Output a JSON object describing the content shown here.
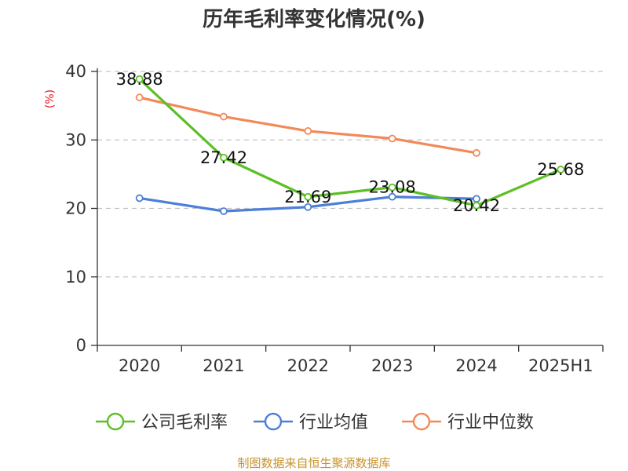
{
  "chart_data": {
    "type": "line",
    "title": "历年毛利率变化情况(%)",
    "ylabel": "(%)",
    "xlabel": "",
    "categories": [
      "2020",
      "2021",
      "2022",
      "2023",
      "2024",
      "2025H1"
    ],
    "ylim": [
      0,
      40
    ],
    "yticks": [
      0,
      10,
      20,
      30,
      40
    ],
    "grid": "horizontal dashed",
    "legend_position": "bottom",
    "series": [
      {
        "name": "公司毛利率",
        "color": "#5cbf24",
        "values": [
          38.88,
          27.42,
          21.69,
          23.08,
          20.42,
          25.68
        ],
        "labels": [
          "38.88",
          "27.42",
          "21.69",
          "23.08",
          "20.42",
          "25.68"
        ]
      },
      {
        "name": "行业均值",
        "color": "#4e7fd8",
        "values": [
          21.5,
          19.6,
          20.2,
          21.7,
          21.4,
          null
        ]
      },
      {
        "name": "行业中位数",
        "color": "#f2895a",
        "values": [
          36.2,
          33.4,
          31.3,
          30.2,
          28.1,
          null
        ]
      }
    ]
  },
  "source": "制图数据来自恒生聚源数据库"
}
